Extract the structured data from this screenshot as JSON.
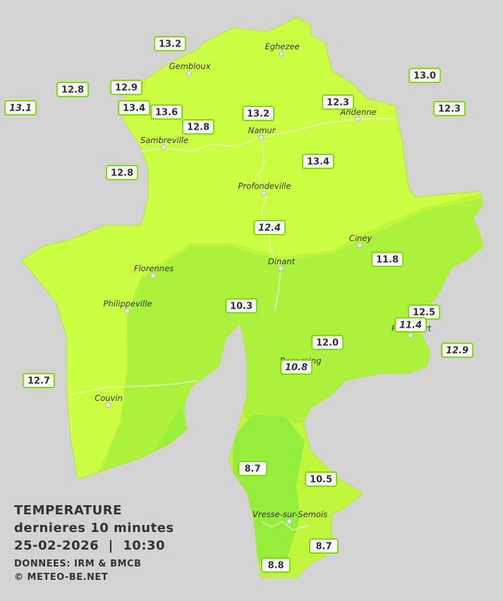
{
  "legend": {
    "title": "TEMPERATURE",
    "subtitle": "dernieres 10 minutes",
    "datetime": "25-02-2026  |  10:30",
    "source": "DONNEES: IRM & BMCB",
    "copyright": "© METEO-BE.NET"
  },
  "towns": [
    "Eghezee",
    "Gembloux",
    "Andenne",
    "Namur",
    "Sambreville",
    "Profondeville",
    "Ciney",
    "Dinant",
    "Florennes",
    "Philippeville",
    "Beauraing",
    "Rochefort",
    "Couvin",
    "Vresse-sur-Semois"
  ],
  "stations": [
    "13.2",
    "12.8",
    "12.9",
    "13.1",
    "13.4",
    "13.6",
    "12.8",
    "13.2",
    "12.3",
    "13.0",
    "12.3",
    "12.8",
    "13.4",
    "12.4",
    "11.8",
    "10.3",
    "12.5",
    "11.4",
    "12.0",
    "12.9",
    "10.8",
    "12.7",
    "8.7",
    "10.5",
    "8.7",
    "8.8"
  ]
}
